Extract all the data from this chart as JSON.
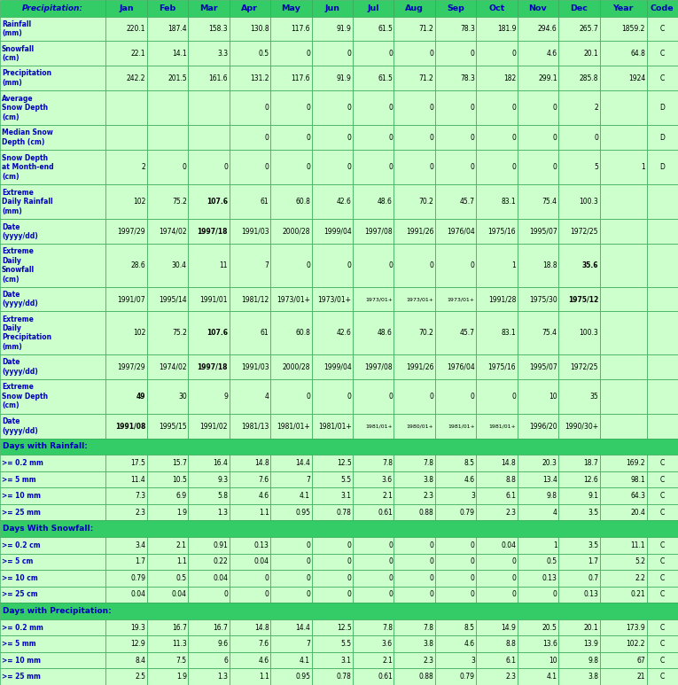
{
  "header_labels": [
    "Precipitation:",
    "Jan",
    "Feb",
    "Mar",
    "Apr",
    "May",
    "Jun",
    "Jul",
    "Aug",
    "Sep",
    "Oct",
    "Nov",
    "Dec",
    "Year",
    "Code"
  ],
  "col_widths_rel": [
    1.85,
    0.72,
    0.72,
    0.72,
    0.72,
    0.72,
    0.72,
    0.72,
    0.72,
    0.72,
    0.72,
    0.72,
    0.72,
    0.82,
    0.55
  ],
  "rows": [
    {
      "label": "Rainfall\n(mm)",
      "values": [
        "220.1",
        "187.4",
        "158.3",
        "130.8",
        "117.6",
        "91.9",
        "61.5",
        "71.2",
        "78.3",
        "181.9",
        "294.6",
        "265.7",
        "1859.2",
        "C"
      ],
      "bold_vals": [],
      "section_header": false
    },
    {
      "label": "Snowfall\n(cm)",
      "values": [
        "22.1",
        "14.1",
        "3.3",
        "0.5",
        "0",
        "0",
        "0",
        "0",
        "0",
        "0",
        "4.6",
        "20.1",
        "64.8",
        "C"
      ],
      "bold_vals": [],
      "section_header": false
    },
    {
      "label": "Precipitation\n(mm)",
      "values": [
        "242.2",
        "201.5",
        "161.6",
        "131.2",
        "117.6",
        "91.9",
        "61.5",
        "71.2",
        "78.3",
        "182",
        "299.1",
        "285.8",
        "1924",
        "C"
      ],
      "bold_vals": [],
      "section_header": false
    },
    {
      "label": "Average\nSnow Depth\n(cm)",
      "values": [
        "",
        "",
        "",
        "0",
        "0",
        "0",
        "0",
        "0",
        "0",
        "0",
        "0",
        "2",
        "",
        "D"
      ],
      "bold_vals": [],
      "section_header": false
    },
    {
      "label": "Median Snow\nDepth (cm)",
      "values": [
        "",
        "",
        "",
        "0",
        "0",
        "0",
        "0",
        "0",
        "0",
        "0",
        "0",
        "0",
        "",
        "D"
      ],
      "bold_vals": [],
      "section_header": false
    },
    {
      "label": "Snow Depth\nat Month-end\n(cm)",
      "values": [
        "2",
        "0",
        "0",
        "0",
        "0",
        "0",
        "0",
        "0",
        "0",
        "0",
        "0",
        "5",
        "1",
        "D"
      ],
      "bold_vals": [],
      "section_header": false
    },
    {
      "label": "Extreme\nDaily Rainfall\n(mm)",
      "values": [
        "102",
        "75.2",
        "107.6",
        "61",
        "60.8",
        "42.6",
        "48.6",
        "70.2",
        "45.7",
        "83.1",
        "75.4",
        "100.3",
        "",
        ""
      ],
      "bold_vals": [
        2
      ],
      "section_header": false
    },
    {
      "label": "Date\n(yyyy/dd)",
      "values": [
        "1997/29",
        "1974/02",
        "1997/18",
        "1991/03",
        "2000/28",
        "1999/04",
        "1997/08",
        "1991/26",
        "1976/04",
        "1975/16",
        "1995/07",
        "1972/25",
        "",
        ""
      ],
      "bold_vals": [
        2
      ],
      "section_header": false
    },
    {
      "label": "Extreme\nDaily\nSnowfall\n(cm)",
      "values": [
        "28.6",
        "30.4",
        "11",
        "7",
        "0",
        "0",
        "0",
        "0",
        "0",
        "1",
        "18.8",
        "35.6",
        "",
        ""
      ],
      "bold_vals": [
        11
      ],
      "section_header": false
    },
    {
      "label": "Date\n(yyyy/dd)",
      "values": [
        "1991/07",
        "1995/14",
        "1991/01",
        "1981/12",
        "1973/01+",
        "1973/01+",
        "1973/01+",
        "1973/01+",
        "1973/01+",
        "1991/28",
        "1975/30",
        "1975/12",
        "",
        ""
      ],
      "bold_vals": [
        11
      ],
      "section_header": false
    },
    {
      "label": "Extreme\nDaily\nPrecipitation\n(mm)",
      "values": [
        "102",
        "75.2",
        "107.6",
        "61",
        "60.8",
        "42.6",
        "48.6",
        "70.2",
        "45.7",
        "83.1",
        "75.4",
        "100.3",
        "",
        ""
      ],
      "bold_vals": [
        2
      ],
      "section_header": false
    },
    {
      "label": "Date\n(yyyy/dd)",
      "values": [
        "1997/29",
        "1974/02",
        "1997/18",
        "1991/03",
        "2000/28",
        "1999/04",
        "1997/08",
        "1991/26",
        "1976/04",
        "1975/16",
        "1995/07",
        "1972/25",
        "",
        ""
      ],
      "bold_vals": [
        2
      ],
      "section_header": false
    },
    {
      "label": "Extreme\nSnow Depth\n(cm)",
      "values": [
        "49",
        "30",
        "9",
        "4",
        "0",
        "0",
        "0",
        "0",
        "0",
        "0",
        "10",
        "35",
        "",
        ""
      ],
      "bold_vals": [
        0
      ],
      "section_header": false
    },
    {
      "label": "Date\n(yyyy/dd)",
      "values": [
        "1991/08",
        "1995/15",
        "1991/02",
        "1981/13",
        "1981/01+",
        "1981/01+",
        "1981/01+",
        "1980/01+",
        "1981/01+",
        "1981/01+",
        "1996/20",
        "1990/30+",
        "",
        ""
      ],
      "bold_vals": [
        0
      ],
      "section_header": false
    },
    {
      "label": "Days with Rainfall:",
      "values": [
        "",
        "",
        "",
        "",
        "",
        "",
        "",
        "",
        "",
        "",
        "",
        "",
        "",
        ""
      ],
      "bold_vals": [],
      "section_header": true
    },
    {
      "label": ">= 0.2 mm",
      "values": [
        "17.5",
        "15.7",
        "16.4",
        "14.8",
        "14.4",
        "12.5",
        "7.8",
        "7.8",
        "8.5",
        "14.8",
        "20.3",
        "18.7",
        "169.2",
        "C"
      ],
      "bold_vals": [],
      "section_header": false
    },
    {
      "label": ">= 5 mm",
      "values": [
        "11.4",
        "10.5",
        "9.3",
        "7.6",
        "7",
        "5.5",
        "3.6",
        "3.8",
        "4.6",
        "8.8",
        "13.4",
        "12.6",
        "98.1",
        "C"
      ],
      "bold_vals": [],
      "section_header": false
    },
    {
      "label": ">= 10 mm",
      "values": [
        "7.3",
        "6.9",
        "5.8",
        "4.6",
        "4.1",
        "3.1",
        "2.1",
        "2.3",
        "3",
        "6.1",
        "9.8",
        "9.1",
        "64.3",
        "C"
      ],
      "bold_vals": [],
      "section_header": false
    },
    {
      "label": ">= 25 mm",
      "values": [
        "2.3",
        "1.9",
        "1.3",
        "1.1",
        "0.95",
        "0.78",
        "0.61",
        "0.88",
        "0.79",
        "2.3",
        "4",
        "3.5",
        "20.4",
        "C"
      ],
      "bold_vals": [],
      "section_header": false
    },
    {
      "label": "Days With Snowfall:",
      "values": [
        "",
        "",
        "",
        "",
        "",
        "",
        "",
        "",
        "",
        "",
        "",
        "",
        "",
        ""
      ],
      "bold_vals": [],
      "section_header": true
    },
    {
      "label": ">= 0.2 cm",
      "values": [
        "3.4",
        "2.1",
        "0.91",
        "0.13",
        "0",
        "0",
        "0",
        "0",
        "0",
        "0.04",
        "1",
        "3.5",
        "11.1",
        "C"
      ],
      "bold_vals": [],
      "section_header": false
    },
    {
      "label": ">= 5 cm",
      "values": [
        "1.7",
        "1.1",
        "0.22",
        "0.04",
        "0",
        "0",
        "0",
        "0",
        "0",
        "0",
        "0.5",
        "1.7",
        "5.2",
        "C"
      ],
      "bold_vals": [],
      "section_header": false
    },
    {
      "label": ">= 10 cm",
      "values": [
        "0.79",
        "0.5",
        "0.04",
        "0",
        "0",
        "0",
        "0",
        "0",
        "0",
        "0",
        "0.13",
        "0.7",
        "2.2",
        "C"
      ],
      "bold_vals": [],
      "section_header": false
    },
    {
      "label": ">= 25 cm",
      "values": [
        "0.04",
        "0.04",
        "0",
        "0",
        "0",
        "0",
        "0",
        "0",
        "0",
        "0",
        "0",
        "0.13",
        "0.21",
        "C"
      ],
      "bold_vals": [],
      "section_header": false
    },
    {
      "label": "Days with Precipitation:",
      "values": [
        "",
        "",
        "",
        "",
        "",
        "",
        "",
        "",
        "",
        "",
        "",
        "",
        "",
        ""
      ],
      "bold_vals": [],
      "section_header": true
    },
    {
      "label": ">= 0.2 mm",
      "values": [
        "19.3",
        "16.7",
        "16.7",
        "14.8",
        "14.4",
        "12.5",
        "7.8",
        "7.8",
        "8.5",
        "14.9",
        "20.5",
        "20.1",
        "173.9",
        "C"
      ],
      "bold_vals": [],
      "section_header": false
    },
    {
      "label": ">= 5 mm",
      "values": [
        "12.9",
        "11.3",
        "9.6",
        "7.6",
        "7",
        "5.5",
        "3.6",
        "3.8",
        "4.6",
        "8.8",
        "13.6",
        "13.9",
        "102.2",
        "C"
      ],
      "bold_vals": [],
      "section_header": false
    },
    {
      "label": ">= 10 mm",
      "values": [
        "8.4",
        "7.5",
        "6",
        "4.6",
        "4.1",
        "3.1",
        "2.1",
        "2.3",
        "3",
        "6.1",
        "10",
        "9.8",
        "67",
        "C"
      ],
      "bold_vals": [],
      "section_header": false
    },
    {
      "label": ">= 25 mm",
      "values": [
        "2.5",
        "1.9",
        "1.3",
        "1.1",
        "0.95",
        "0.78",
        "0.61",
        "0.88",
        "0.79",
        "2.3",
        "4.1",
        "3.8",
        "21",
        "C"
      ],
      "bold_vals": [],
      "section_header": false
    }
  ],
  "header_bg": "#33CC66",
  "data_bg": "#CCFFCC",
  "section_bg": "#33CC66",
  "border_color": "#33AA55",
  "header_text_color": "#0000BB",
  "label_text_color": "#0000BB",
  "data_text_color": "#000000",
  "section_text_color": "#0000BB"
}
